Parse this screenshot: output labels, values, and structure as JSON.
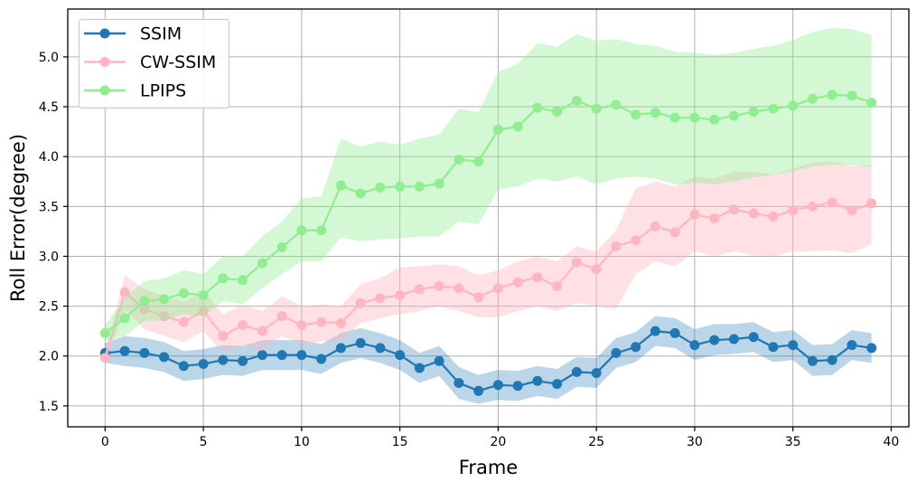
{
  "figure": {
    "xlabel": "Frame",
    "ylabel": "Roll Error(degree)",
    "legend": {
      "position": "upper left",
      "entries": [
        {
          "label": "SSIM",
          "color": "#1f77b4"
        },
        {
          "label": "CW-SSIM",
          "color": "#ffb6c1"
        },
        {
          "label": "LPIPS",
          "color": "#90ee90"
        }
      ]
    }
  },
  "chart_data": {
    "type": "line",
    "title": "",
    "xlabel": "Frame",
    "ylabel": "Roll Error(degree)",
    "xlim": [
      -1.9,
      40.9
    ],
    "ylim": [
      1.29,
      5.48
    ],
    "x_ticks": [
      0,
      5,
      10,
      15,
      20,
      25,
      30,
      35,
      40
    ],
    "y_ticks": [
      1.5,
      2.0,
      2.5,
      3.0,
      3.5,
      4.0,
      4.5,
      5.0
    ],
    "grid": true,
    "grid_color": "#b0b0b0",
    "legend_position": "upper left",
    "x": [
      0,
      1,
      2,
      3,
      4,
      5,
      6,
      7,
      8,
      9,
      10,
      11,
      12,
      13,
      14,
      15,
      16,
      17,
      18,
      19,
      20,
      21,
      22,
      23,
      24,
      25,
      26,
      27,
      28,
      29,
      30,
      31,
      32,
      33,
      34,
      35,
      36,
      37,
      38,
      39
    ],
    "series": [
      {
        "name": "SSIM",
        "color": "#1f77b4",
        "band_fill": "rgba(31,119,180,0.30)",
        "values": [
          2.03,
          2.05,
          2.03,
          1.99,
          1.9,
          1.92,
          1.96,
          1.95,
          2.01,
          2.01,
          2.01,
          1.97,
          2.08,
          2.13,
          2.08,
          2.01,
          1.88,
          1.95,
          1.73,
          1.65,
          1.71,
          1.7,
          1.75,
          1.72,
          1.84,
          1.83,
          2.03,
          2.09,
          2.25,
          2.23,
          2.11,
          2.16,
          2.17,
          2.19,
          2.09,
          2.11,
          1.95,
          1.96,
          2.11,
          2.08
        ],
        "band_upper": [
          2.13,
          2.2,
          2.18,
          2.14,
          2.05,
          2.07,
          2.11,
          2.1,
          2.16,
          2.16,
          2.16,
          2.12,
          2.23,
          2.28,
          2.23,
          2.16,
          2.03,
          2.1,
          1.89,
          1.81,
          1.86,
          1.85,
          1.9,
          1.87,
          1.99,
          1.98,
          2.18,
          2.24,
          2.4,
          2.38,
          2.27,
          2.32,
          2.32,
          2.34,
          2.24,
          2.26,
          2.11,
          2.12,
          2.26,
          2.23
        ],
        "band_lower": [
          1.93,
          1.9,
          1.88,
          1.84,
          1.75,
          1.77,
          1.81,
          1.8,
          1.86,
          1.86,
          1.86,
          1.82,
          1.93,
          1.98,
          1.93,
          1.86,
          1.73,
          1.8,
          1.57,
          1.52,
          1.56,
          1.55,
          1.6,
          1.57,
          1.69,
          1.68,
          1.88,
          1.94,
          2.1,
          2.08,
          1.96,
          2.01,
          2.02,
          2.04,
          1.94,
          1.96,
          1.8,
          1.81,
          1.96,
          1.93
        ]
      },
      {
        "name": "CW-SSIM",
        "color": "#ffb6c1",
        "band_fill": "rgba(255,182,193,0.42)",
        "values": [
          1.98,
          2.64,
          2.47,
          2.4,
          2.34,
          2.45,
          2.2,
          2.31,
          2.25,
          2.4,
          2.31,
          2.34,
          2.33,
          2.53,
          2.58,
          2.61,
          2.67,
          2.7,
          2.68,
          2.59,
          2.68,
          2.74,
          2.79,
          2.7,
          2.94,
          2.87,
          3.1,
          3.16,
          3.3,
          3.24,
          3.42,
          3.38,
          3.47,
          3.43,
          3.4,
          3.46,
          3.5,
          3.54,
          3.46,
          3.53
        ],
        "band_upper": [
          2.03,
          2.81,
          2.67,
          2.6,
          2.54,
          2.65,
          2.42,
          2.51,
          2.45,
          2.6,
          2.5,
          2.52,
          2.5,
          2.72,
          2.78,
          2.89,
          2.9,
          2.92,
          2.9,
          2.81,
          2.86,
          2.95,
          3.0,
          2.95,
          3.1,
          3.05,
          3.26,
          3.68,
          3.75,
          3.7,
          3.8,
          3.78,
          3.85,
          3.85,
          3.82,
          3.88,
          3.94,
          3.95,
          3.9,
          3.92
        ],
        "band_lower": [
          1.93,
          2.46,
          2.27,
          2.2,
          2.14,
          2.25,
          2.03,
          2.11,
          2.05,
          2.2,
          2.12,
          2.15,
          2.15,
          2.33,
          2.38,
          2.42,
          2.45,
          2.5,
          2.45,
          2.39,
          2.39,
          2.45,
          2.5,
          2.45,
          2.53,
          2.5,
          2.47,
          2.82,
          2.95,
          2.9,
          3.05,
          3.0,
          3.05,
          3.01,
          3.0,
          3.05,
          3.05,
          3.06,
          3.03,
          3.12
        ]
      },
      {
        "name": "LPIPS",
        "color": "#90ee90",
        "band_fill": "rgba(144,238,144,0.40)",
        "values": [
          2.23,
          2.38,
          2.55,
          2.57,
          2.63,
          2.61,
          2.78,
          2.76,
          2.93,
          3.09,
          3.26,
          3.26,
          3.71,
          3.63,
          3.69,
          3.7,
          3.7,
          3.73,
          3.97,
          3.95,
          4.27,
          4.3,
          4.49,
          4.45,
          4.56,
          4.48,
          4.52,
          4.42,
          4.44,
          4.39,
          4.39,
          4.37,
          4.41,
          4.45,
          4.48,
          4.51,
          4.58,
          4.62,
          4.61,
          4.54
        ],
        "band_upper": [
          2.31,
          2.58,
          2.75,
          2.78,
          2.86,
          2.82,
          3.0,
          3.0,
          3.2,
          3.35,
          3.58,
          3.6,
          4.18,
          4.1,
          4.15,
          4.12,
          4.18,
          4.22,
          4.48,
          4.45,
          4.85,
          4.93,
          5.14,
          5.1,
          5.23,
          5.16,
          5.18,
          5.13,
          5.11,
          5.05,
          5.04,
          5.02,
          5.04,
          5.08,
          5.11,
          5.17,
          5.25,
          5.29,
          5.28,
          5.22
        ],
        "band_lower": [
          2.15,
          2.2,
          2.35,
          2.35,
          2.42,
          2.4,
          2.55,
          2.52,
          2.68,
          2.82,
          2.95,
          2.95,
          3.19,
          3.15,
          3.17,
          3.18,
          3.2,
          3.2,
          3.35,
          3.32,
          3.67,
          3.7,
          3.78,
          3.75,
          3.8,
          3.72,
          3.78,
          3.8,
          3.78,
          3.72,
          3.74,
          3.72,
          3.75,
          3.79,
          3.82,
          3.85,
          3.9,
          3.92,
          3.91,
          3.9
        ]
      }
    ]
  }
}
